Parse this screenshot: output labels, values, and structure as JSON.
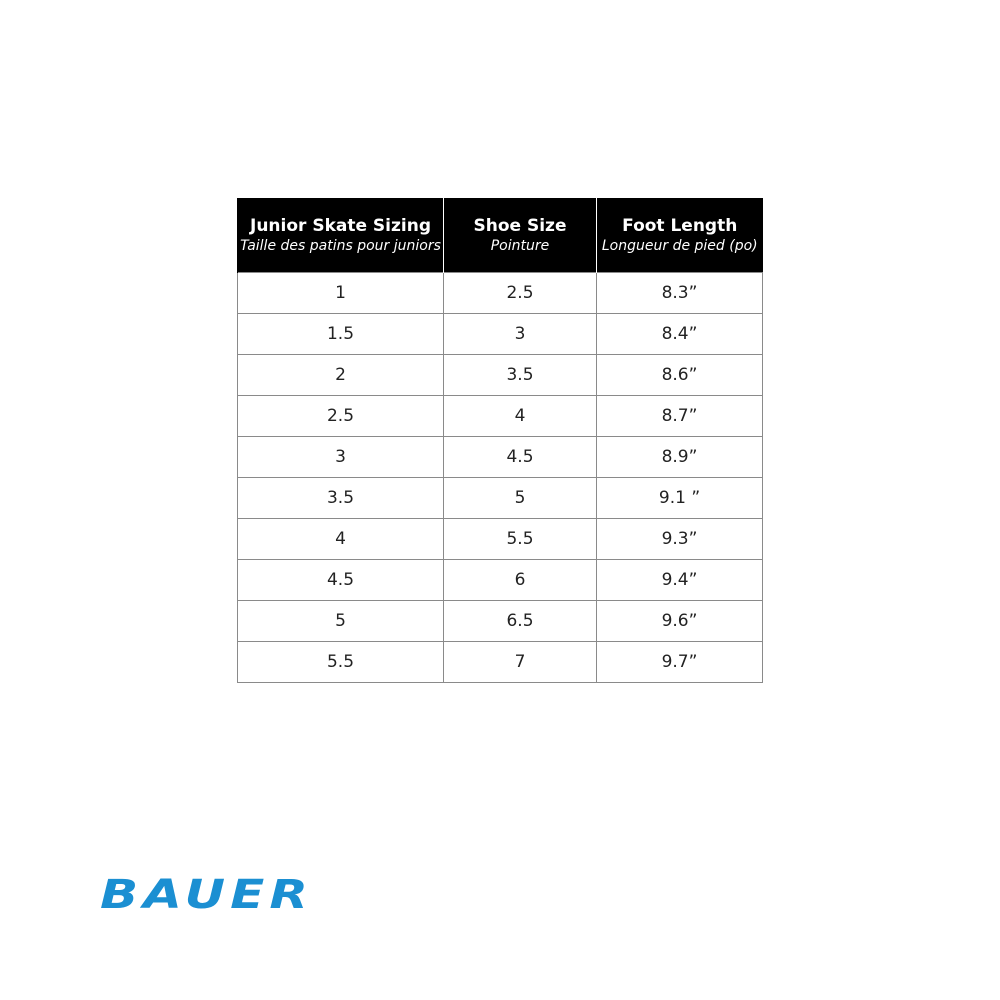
{
  "table": {
    "columns": [
      {
        "title": "Junior Skate Sizing",
        "subtitle": "Taille des patins pour juniors"
      },
      {
        "title": "Shoe Size",
        "subtitle": "Pointure"
      },
      {
        "title": "Foot Length",
        "subtitle": "Longueur de pied (po)"
      }
    ],
    "rows": [
      [
        "1",
        "2.5",
        "8.3”"
      ],
      [
        "1.5",
        "3",
        "8.4”"
      ],
      [
        "2",
        "3.5",
        "8.6”"
      ],
      [
        "2.5",
        "4",
        "8.7”"
      ],
      [
        "3",
        "4.5",
        "8.9”"
      ],
      [
        "3.5",
        "5",
        "9.1 ”"
      ],
      [
        "4",
        "5.5",
        "9.3”"
      ],
      [
        "4.5",
        "6",
        "9.4”"
      ],
      [
        "5",
        "6.5",
        "9.6”"
      ],
      [
        "5.5",
        "7",
        "9.7”"
      ]
    ]
  },
  "logo": {
    "text": "BAUER"
  }
}
